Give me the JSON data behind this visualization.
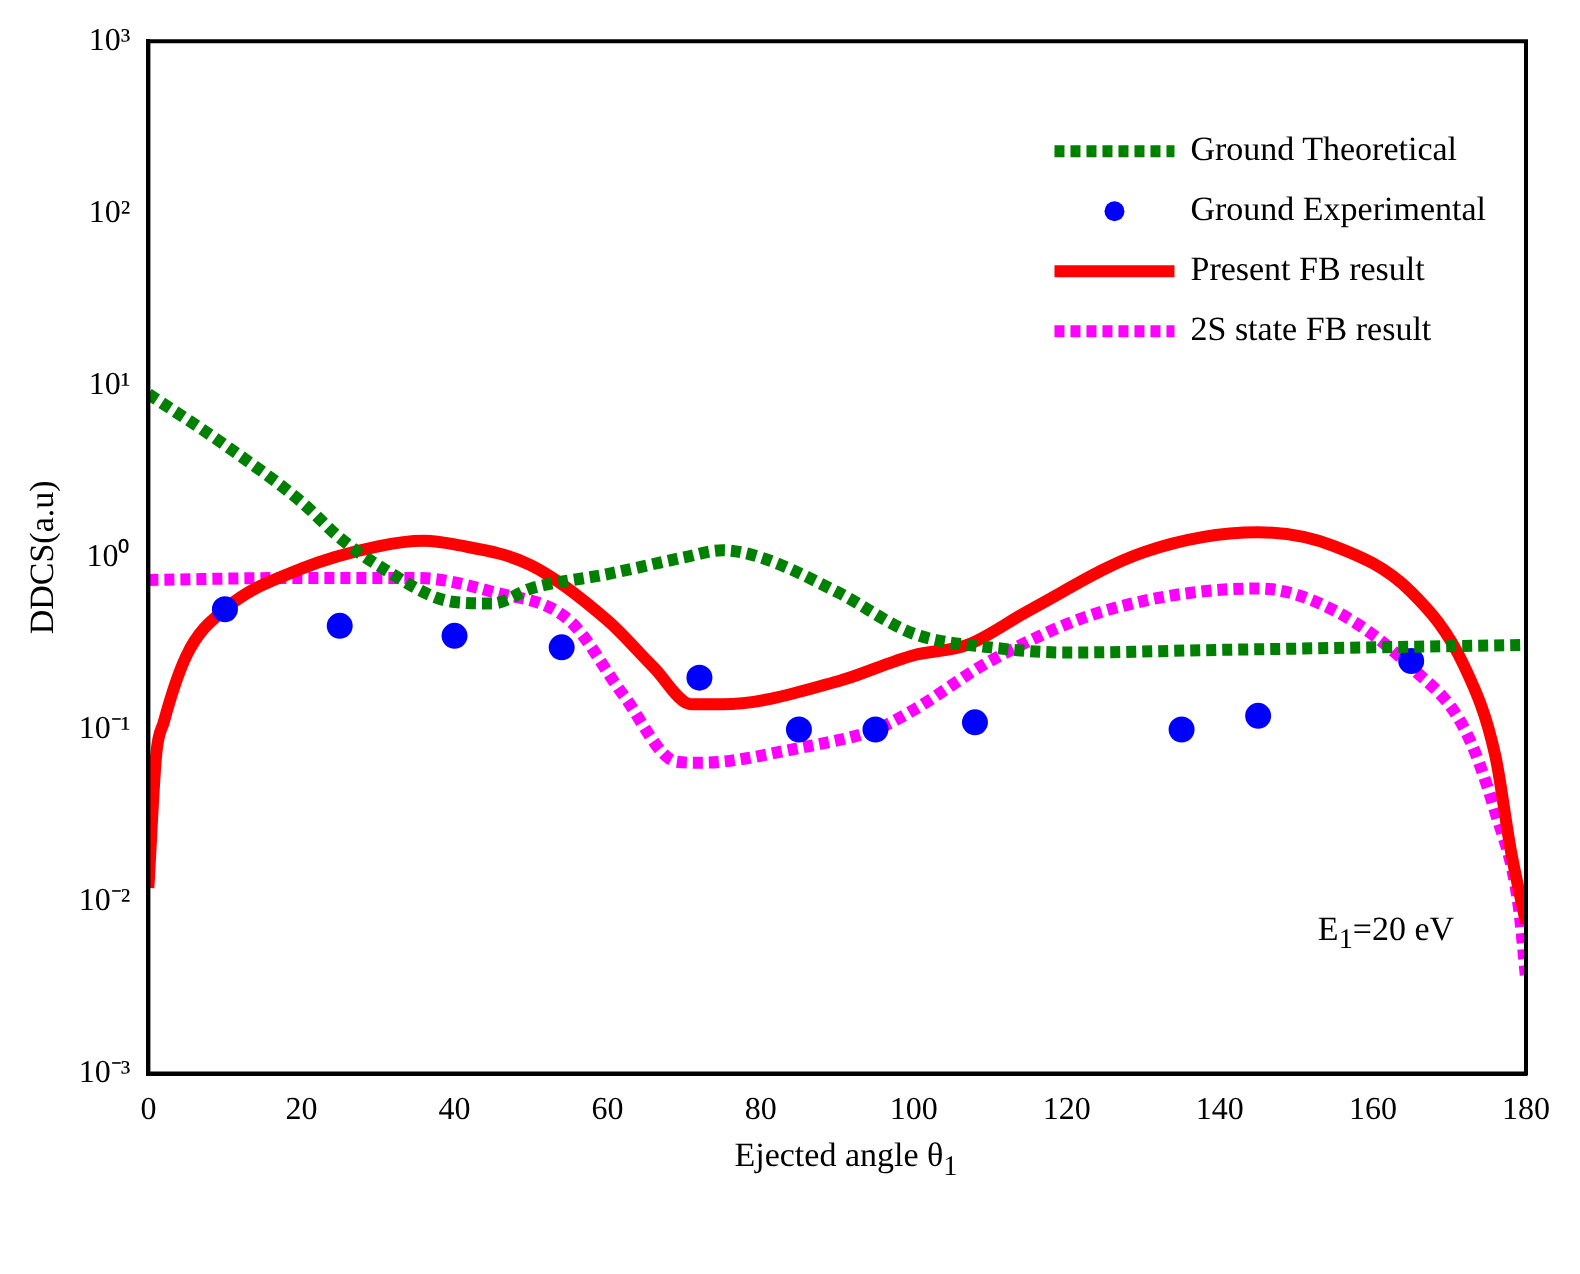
{
  "chart_data": {
    "type": "line",
    "xlabel": "Ejected angle θ$_{1}$",
    "ylabel": "DDCS(a.u)",
    "log": "y",
    "xlim": [
      0,
      180
    ],
    "xticks": [
      0,
      20,
      40,
      60,
      80,
      100,
      120,
      140,
      160,
      180
    ],
    "ylim": [
      0.001,
      1000
    ],
    "yticks": [
      {
        "value": 0.001,
        "label": "10⁻³"
      },
      {
        "value": 0.01,
        "label": "10⁻²"
      },
      {
        "value": 0.1,
        "label": "10⁻¹"
      },
      {
        "value": 1,
        "label": "10⁰"
      },
      {
        "value": 10,
        "label": "10¹"
      },
      {
        "value": 100,
        "label": "10²"
      },
      {
        "value": 1000,
        "label": "10³"
      }
    ],
    "grid": false,
    "legend": "top right",
    "annotations": [
      "E$_{1}$=20 eV"
    ],
    "series": [
      {
        "name": "Ground Theoretical",
        "line_style": "dotted",
        "color": "#008000",
        "x": [
          0,
          10,
          20,
          25,
          30,
          40,
          45,
          50,
          60,
          70,
          75,
          80,
          90,
          100,
          110,
          120,
          140,
          160,
          180
        ],
        "values": [
          8.9,
          4.5,
          2.1,
          1.3,
          0.9,
          0.55,
          0.54,
          0.66,
          0.8,
          1.0,
          1.1,
          1.0,
          0.63,
          0.36,
          0.3,
          0.28,
          0.29,
          0.3,
          0.31
        ]
      },
      {
        "name": "Ground Experimental",
        "type": "scatter",
        "marker": "circle",
        "color": "#0000ff",
        "x": [
          10,
          25,
          40,
          54,
          72,
          85,
          95,
          108,
          135,
          145,
          165
        ],
        "values": [
          0.5,
          0.4,
          0.35,
          0.3,
          0.2,
          0.1,
          0.1,
          0.11,
          0.1,
          0.12,
          0.25
        ]
      },
      {
        "name": "Present FB result",
        "line_style": "solid",
        "color": "#ff0000",
        "x": [
          0,
          1,
          2,
          5,
          10,
          20,
          30,
          36,
          40,
          50,
          60,
          66,
          71,
          75,
          90,
          100,
          107,
          115,
          130,
          145,
          155,
          165,
          172,
          176,
          178,
          180
        ],
        "values": [
          0.012,
          0.07,
          0.11,
          0.27,
          0.5,
          0.86,
          1.16,
          1.25,
          1.19,
          0.9,
          0.43,
          0.23,
          0.14,
          0.14,
          0.19,
          0.27,
          0.31,
          0.49,
          1.07,
          1.4,
          1.16,
          0.63,
          0.23,
          0.07,
          0.02,
          0.0075
        ]
      },
      {
        "name": "2S state FB result",
        "line_style": "dotted",
        "color": "#ff00ff",
        "x": [
          0,
          20,
          35,
          45,
          55,
          62,
          69,
          72,
          85,
          95,
          100,
          110,
          125,
          145,
          155,
          165,
          172,
          176,
          179,
          180
        ],
        "values": [
          0.74,
          0.76,
          0.76,
          0.63,
          0.43,
          0.16,
          0.065,
          0.064,
          0.078,
          0.1,
          0.13,
          0.25,
          0.49,
          0.66,
          0.49,
          0.23,
          0.1,
          0.033,
          0.0097,
          0.0036
        ]
      }
    ]
  }
}
